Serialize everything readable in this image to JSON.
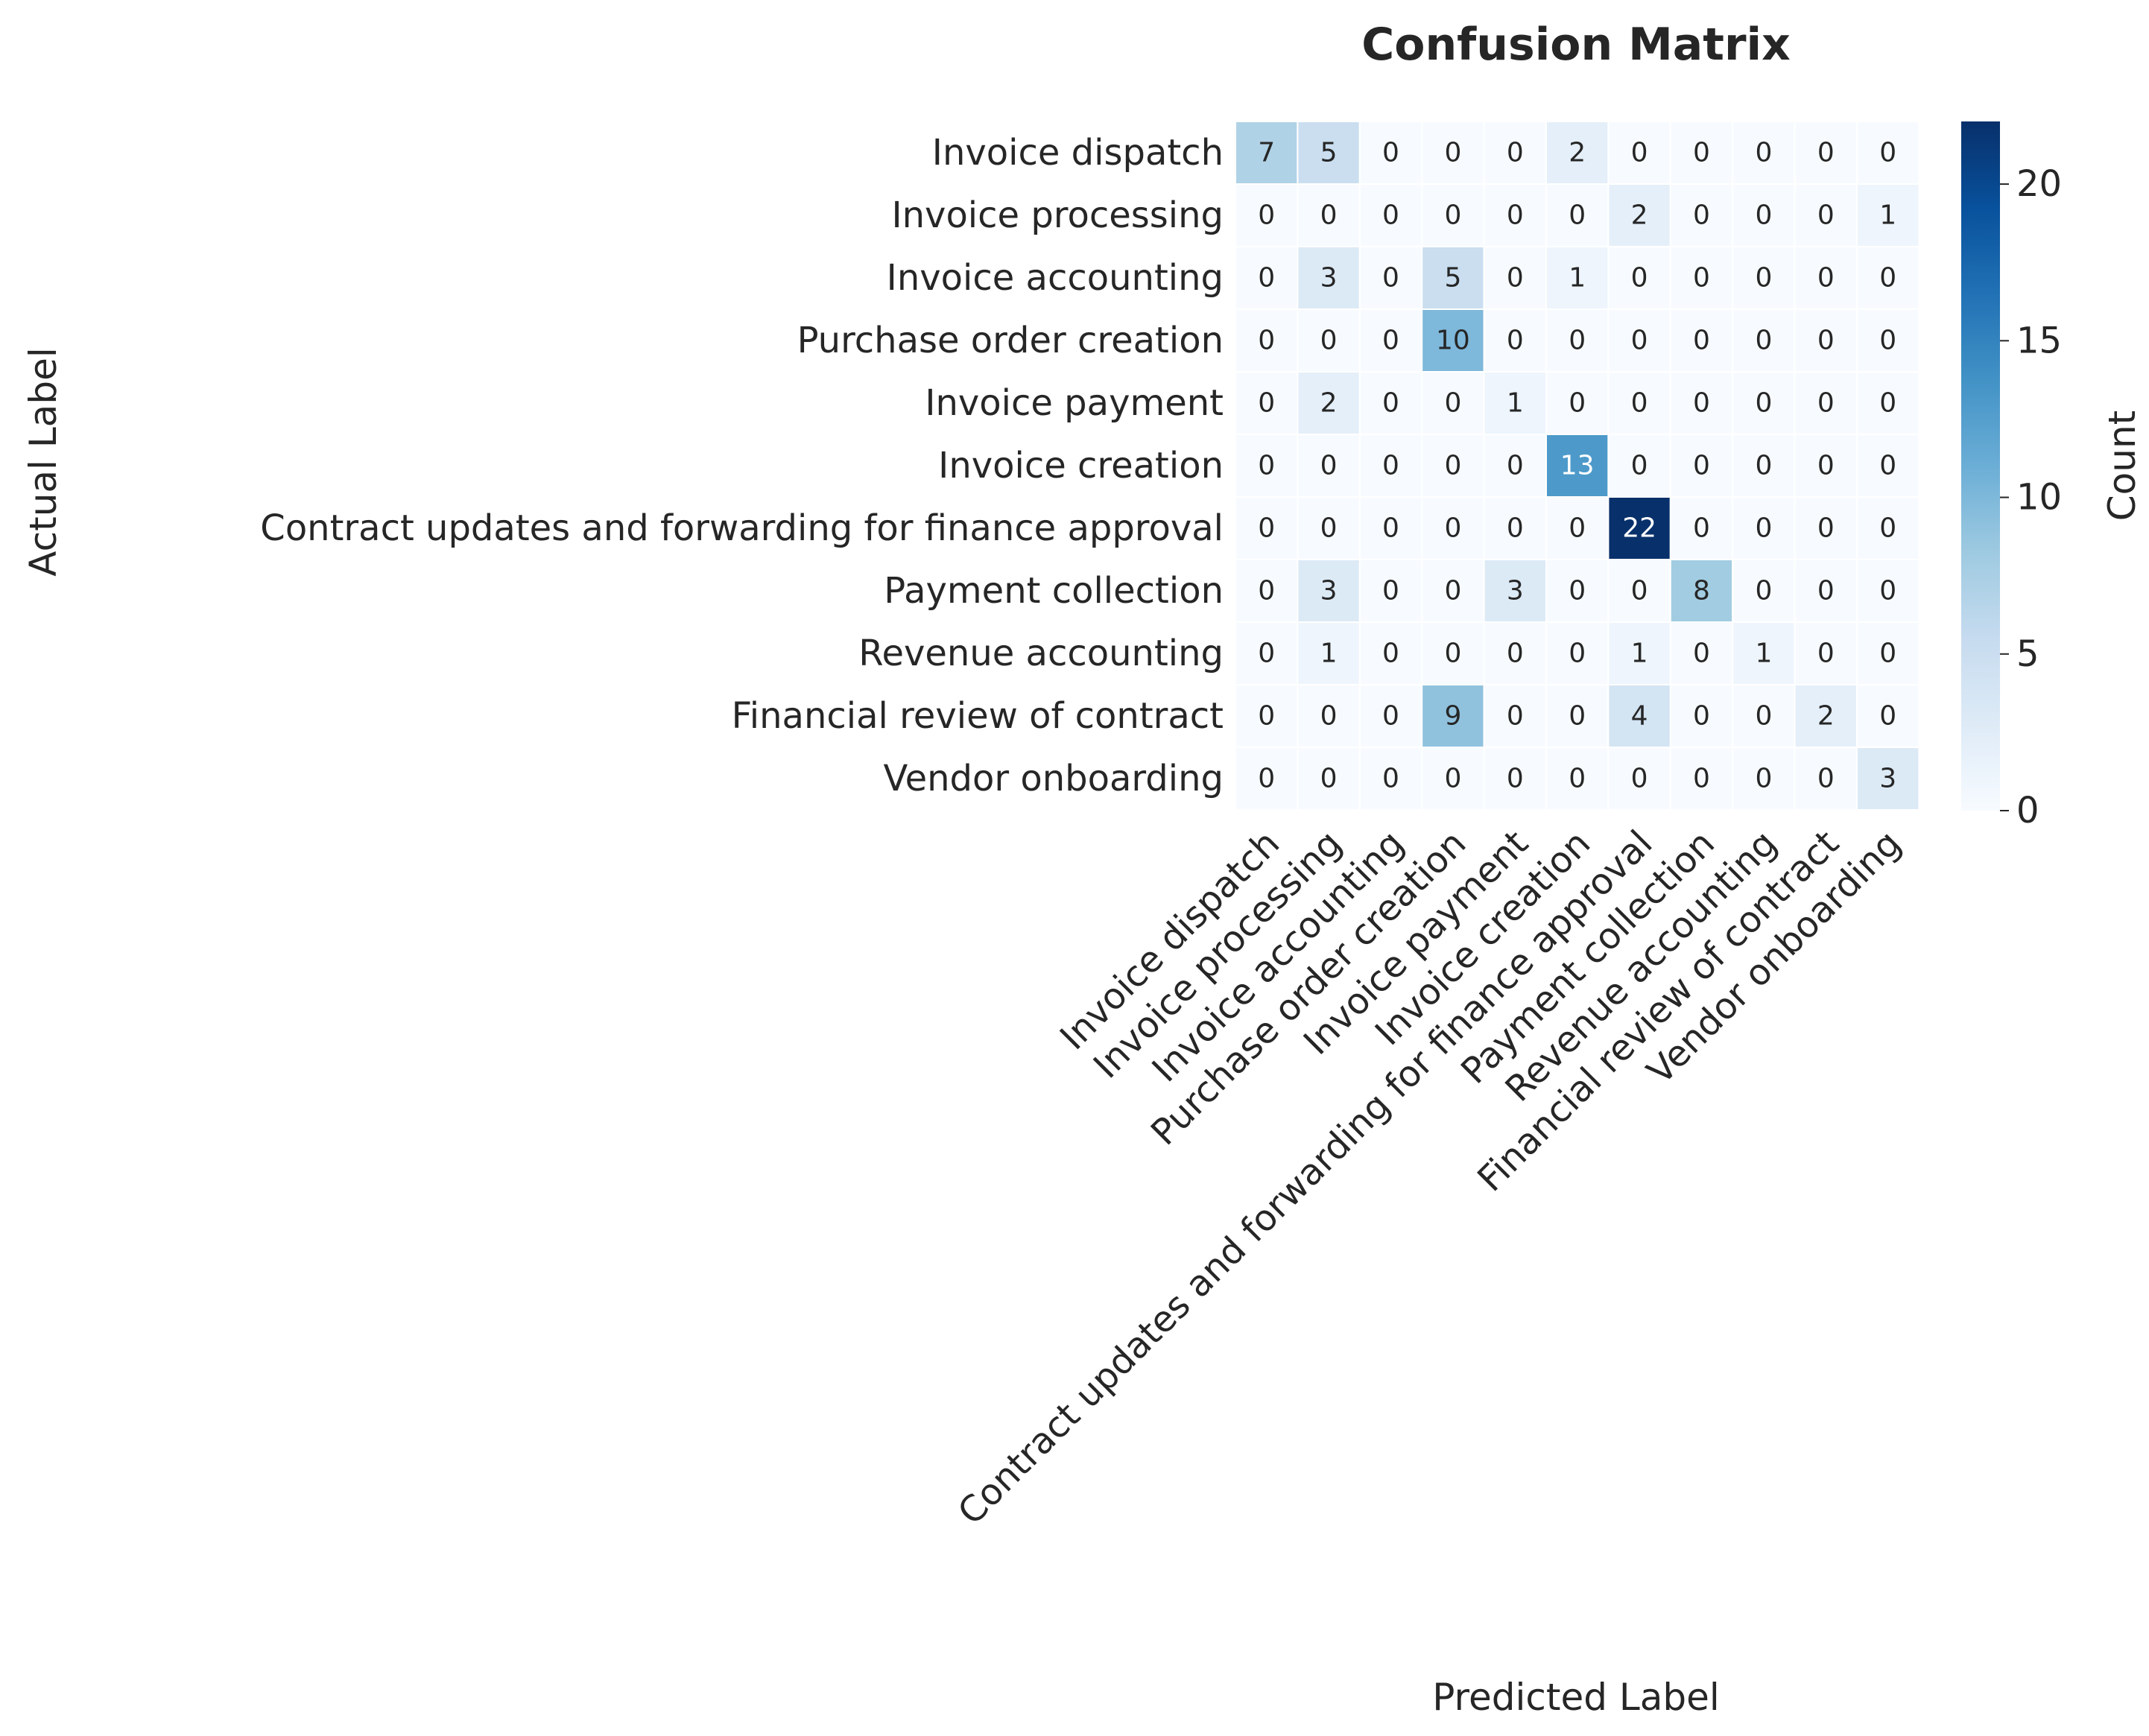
{
  "chart_data": {
    "type": "heatmap",
    "title": "Confusion Matrix",
    "xlabel": "Predicted Label",
    "ylabel": "Actual Label",
    "colorbar_label": "Count",
    "colorbar_ticks": [
      0,
      5,
      10,
      15,
      20
    ],
    "vmin": 0,
    "vmax": 22,
    "colormap": "Blues",
    "categories": [
      "Invoice dispatch",
      "Invoice processing",
      "Invoice accounting",
      "Purchase order creation",
      "Invoice payment",
      "Invoice creation",
      "Contract updates and forwarding for finance approval",
      "Payment collection",
      "Revenue accounting",
      "Financial review of contract",
      "Vendor onboarding"
    ],
    "matrix": [
      [
        7,
        5,
        0,
        0,
        0,
        2,
        0,
        0,
        0,
        0,
        0
      ],
      [
        0,
        0,
        0,
        0,
        0,
        0,
        2,
        0,
        0,
        0,
        1
      ],
      [
        0,
        3,
        0,
        5,
        0,
        1,
        0,
        0,
        0,
        0,
        0
      ],
      [
        0,
        0,
        0,
        10,
        0,
        0,
        0,
        0,
        0,
        0,
        0
      ],
      [
        0,
        2,
        0,
        0,
        1,
        0,
        0,
        0,
        0,
        0,
        0
      ],
      [
        0,
        0,
        0,
        0,
        0,
        13,
        0,
        0,
        0,
        0,
        0
      ],
      [
        0,
        0,
        0,
        0,
        0,
        0,
        22,
        0,
        0,
        0,
        0
      ],
      [
        0,
        3,
        0,
        0,
        3,
        0,
        0,
        8,
        0,
        0,
        0
      ],
      [
        0,
        1,
        0,
        0,
        0,
        0,
        1,
        0,
        1,
        0,
        0
      ],
      [
        0,
        0,
        0,
        9,
        0,
        0,
        4,
        0,
        0,
        2,
        0
      ],
      [
        0,
        0,
        0,
        0,
        0,
        0,
        0,
        0,
        0,
        0,
        3
      ]
    ]
  }
}
